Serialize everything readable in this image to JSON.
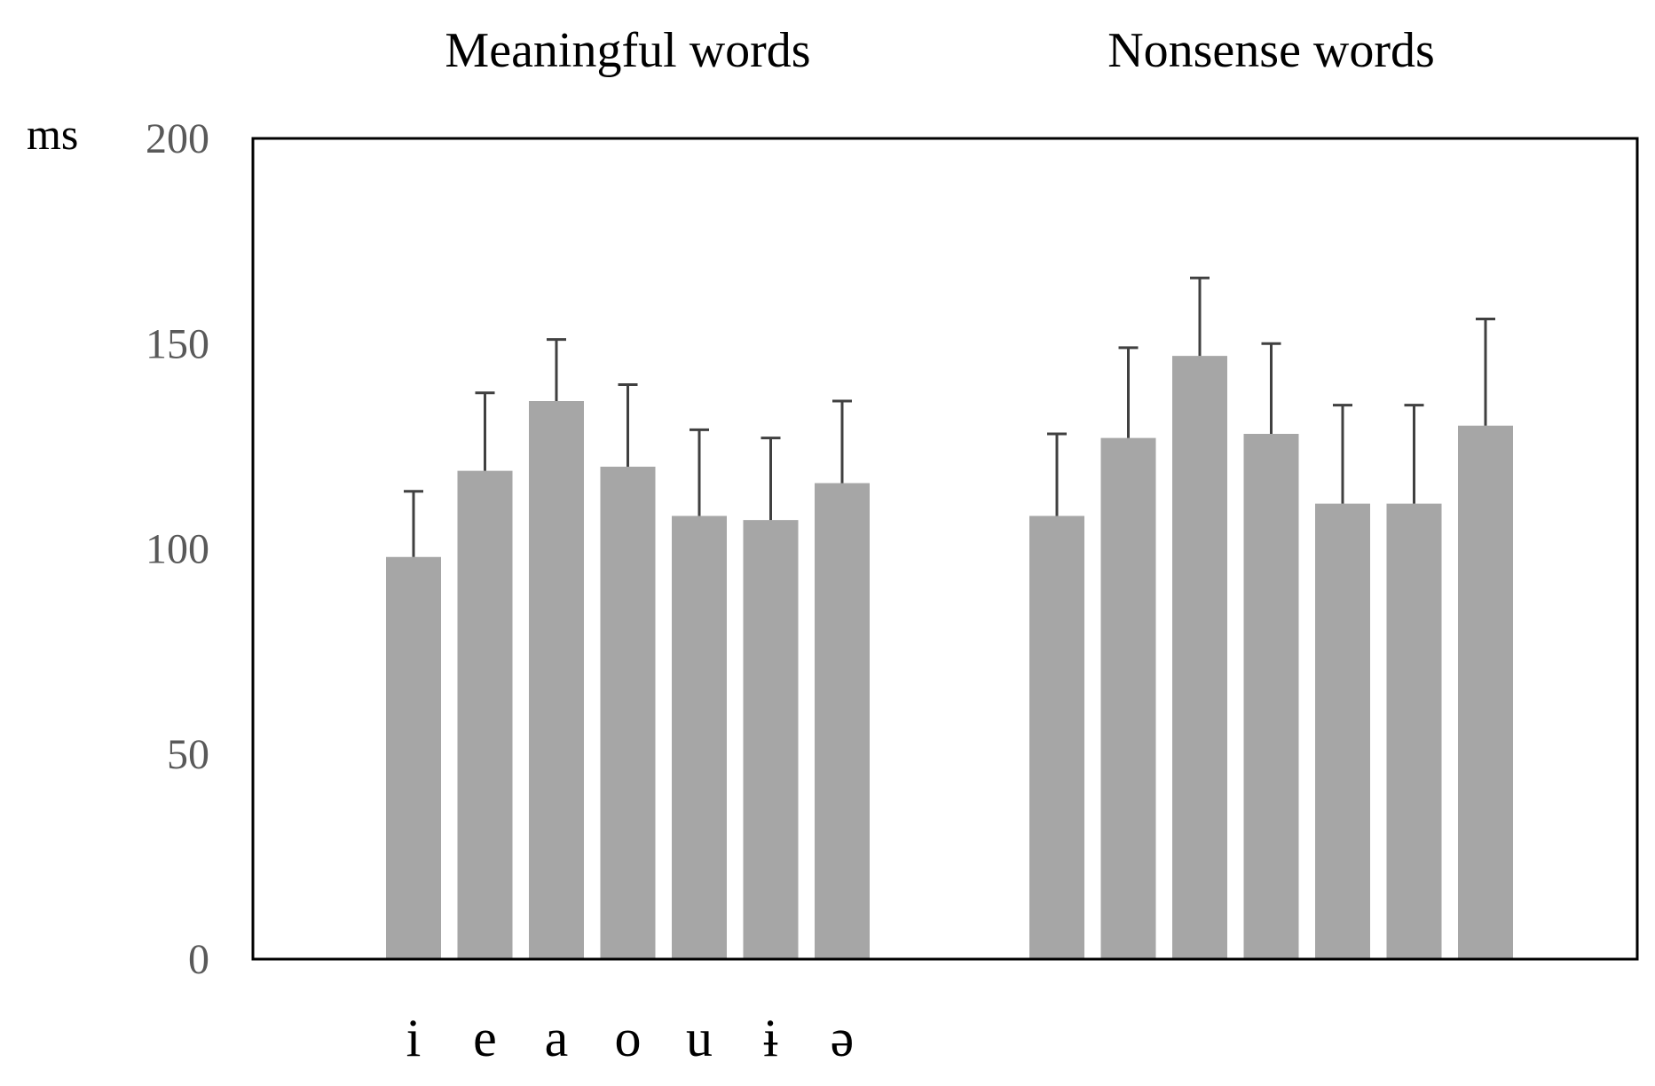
{
  "chart_data": {
    "type": "bar",
    "ylabel": "ms",
    "ylim": [
      0,
      200
    ],
    "yticks": [
      "0",
      "50",
      "100",
      "150",
      "200"
    ],
    "grid": false,
    "legend": "none",
    "bar_color": "#a6a6a6",
    "error_bar_color": "#404040",
    "frame_color": "#000000",
    "category_labels": [
      "i",
      "e",
      "a",
      "o",
      "u",
      "ɨ",
      "ə"
    ],
    "groups": [
      {
        "title": "Meaningful words",
        "values": [
          98,
          119,
          136,
          120,
          108,
          107,
          116
        ],
        "errors": [
          16,
          19,
          15,
          20,
          21,
          20,
          20
        ]
      },
      {
        "title": "Nonsense words",
        "values": [
          108,
          127,
          147,
          128,
          111,
          111,
          130
        ],
        "errors": [
          20,
          22,
          19,
          22,
          24,
          24,
          26
        ]
      }
    ]
  }
}
